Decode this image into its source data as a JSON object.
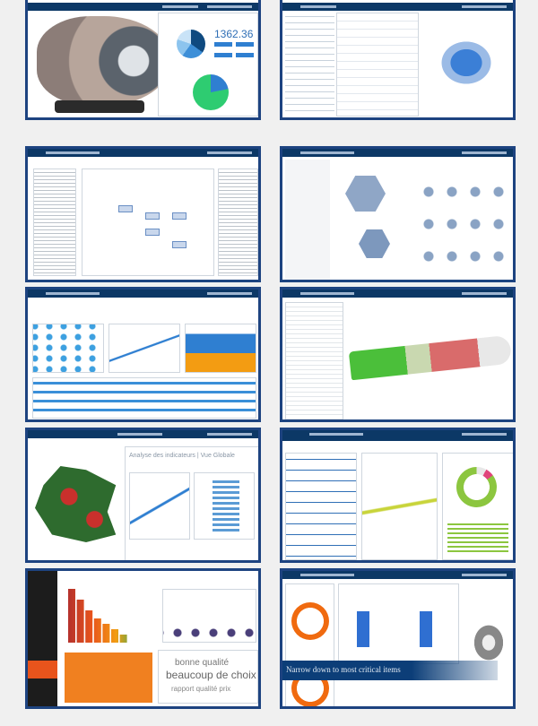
{
  "panels": [
    {
      "id": "engine-dashboard",
      "kpi": "1362.36"
    },
    {
      "id": "structure-editor"
    },
    {
      "id": "document-diagram"
    },
    {
      "id": "parts-catalog"
    },
    {
      "id": "analytics-dashboard"
    },
    {
      "id": "aircraft-viewer"
    },
    {
      "id": "france-map-analytics",
      "title": "Analyse des indicateurs | Vue Globale"
    },
    {
      "id": "social-analytics"
    },
    {
      "id": "retail-analytics",
      "wordcloud": [
        "bonne qualité",
        "beaucoup de choix",
        "rapport qualité prix"
      ]
    },
    {
      "id": "quality-dashboard",
      "banner": "Narrow down to most critical items"
    }
  ],
  "colors": {
    "frame": "#1d4380",
    "topbar": "#0c3866",
    "accent": "#2f7fd1"
  }
}
